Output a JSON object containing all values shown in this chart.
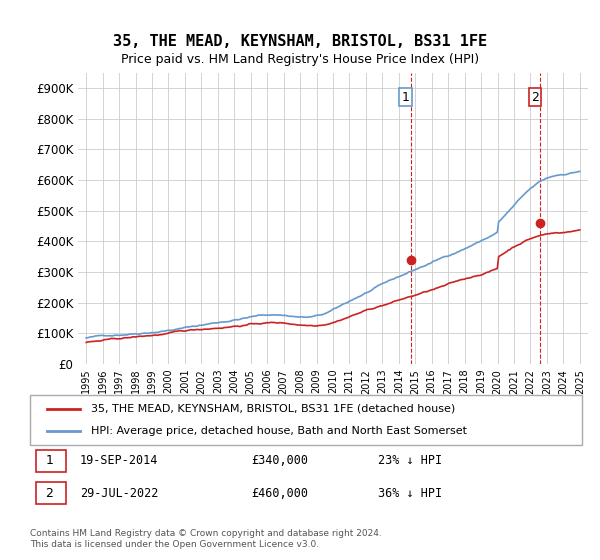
{
  "title": "35, THE MEAD, KEYNSHAM, BRISTOL, BS31 1FE",
  "subtitle": "Price paid vs. HM Land Registry's House Price Index (HPI)",
  "ylabel_ticks": [
    "£0",
    "£100K",
    "£200K",
    "£300K",
    "£400K",
    "£500K",
    "£600K",
    "£700K",
    "£800K",
    "£900K"
  ],
  "ytick_values": [
    0,
    100000,
    200000,
    300000,
    400000,
    500000,
    600000,
    700000,
    800000,
    900000
  ],
  "ylim": [
    0,
    950000
  ],
  "xlim_start": 1995.0,
  "xlim_end": 2025.5,
  "hpi_color": "#6699cc",
  "price_color": "#cc2222",
  "dashed_line_color": "#cc2222",
  "marker1_x": 2014.72,
  "marker1_y": 340000,
  "marker2_x": 2022.58,
  "marker2_y": 460000,
  "vline1_x": 2014.72,
  "vline2_x": 2022.58,
  "legend_label_price": "35, THE MEAD, KEYNSHAM, BRISTOL, BS31 1FE (detached house)",
  "legend_label_hpi": "HPI: Average price, detached house, Bath and North East Somerset",
  "annotation1_label": "1",
  "annotation2_label": "2",
  "table_row1": "1    19-SEP-2014         £340,000        23% ↓ HPI",
  "table_row2": "2    29-JUL-2022         £460,000        36% ↓ HPI",
  "footnote": "Contains HM Land Registry data © Crown copyright and database right 2024.\nThis data is licensed under the Open Government Licence v3.0.",
  "background_color": "#ffffff",
  "grid_color": "#cccccc"
}
